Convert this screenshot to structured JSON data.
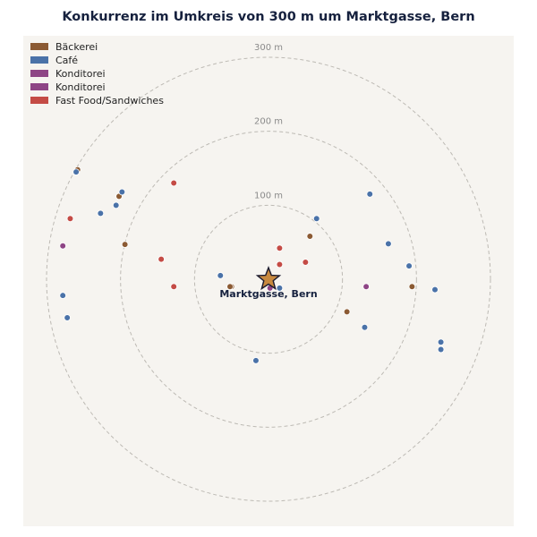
{
  "title": "Konkurrenz im Umkreis von 300 m um Marktgasse, Bern",
  "center_label": "Marktgasse, Bern",
  "rings": [
    {
      "label": "100 m",
      "radius_m": 100
    },
    {
      "label": "200 m",
      "radius_m": 200
    },
    {
      "label": "300 m",
      "radius_m": 300
    }
  ],
  "legend": [
    {
      "label": "Bäckerei",
      "color": "#8b5a33",
      "category": "baeckerei"
    },
    {
      "label": "Café",
      "color": "#4a72a8",
      "category": "cafe"
    },
    {
      "label": "Konditorei",
      "color": "#8e4585",
      "category": "konditorei"
    },
    {
      "label": "Konditorei",
      "color": "#8e4585",
      "category": "konditorei"
    },
    {
      "label": "Fast Food/Sandwiches",
      "color": "#c44b45",
      "category": "fastfood"
    }
  ],
  "chart_data": {
    "type": "scatter",
    "x_unit": "m east of center",
    "y_unit": "m north of center",
    "points": [
      {
        "category": "baeckerei",
        "x": -258,
        "y": 148
      },
      {
        "category": "baeckerei",
        "x": -202,
        "y": 112
      },
      {
        "category": "baeckerei",
        "x": -194,
        "y": 47
      },
      {
        "category": "baeckerei",
        "x": -50,
        "y": -10
      },
      {
        "category": "baeckerei",
        "x": -52,
        "y": -10
      },
      {
        "category": "baeckerei",
        "x": 56,
        "y": 58
      },
      {
        "category": "baeckerei",
        "x": 194,
        "y": -10
      },
      {
        "category": "baeckerei",
        "x": 106,
        "y": -44
      },
      {
        "category": "cafe",
        "x": -260,
        "y": 145
      },
      {
        "category": "cafe",
        "x": -198,
        "y": 118
      },
      {
        "category": "cafe",
        "x": -206,
        "y": 100
      },
      {
        "category": "cafe",
        "x": -227,
        "y": 89
      },
      {
        "category": "cafe",
        "x": -278,
        "y": -22
      },
      {
        "category": "cafe",
        "x": -272,
        "y": -52
      },
      {
        "category": "cafe",
        "x": -65,
        "y": 5
      },
      {
        "category": "cafe",
        "x": 15,
        "y": -12
      },
      {
        "category": "cafe",
        "x": -17,
        "y": -110
      },
      {
        "category": "cafe",
        "x": 65,
        "y": 82
      },
      {
        "category": "cafe",
        "x": 137,
        "y": 115
      },
      {
        "category": "cafe",
        "x": 162,
        "y": 48
      },
      {
        "category": "cafe",
        "x": 190,
        "y": 18
      },
      {
        "category": "cafe",
        "x": 225,
        "y": -14
      },
      {
        "category": "cafe",
        "x": 130,
        "y": -65
      },
      {
        "category": "cafe",
        "x": 233,
        "y": -85
      },
      {
        "category": "cafe",
        "x": 233,
        "y": -95
      },
      {
        "category": "konditorei",
        "x": -278,
        "y": 45
      },
      {
        "category": "konditorei",
        "x": 132,
        "y": -10
      },
      {
        "category": "konditorei",
        "x": 2,
        "y": -12
      },
      {
        "category": "fastfood",
        "x": -268,
        "y": 82
      },
      {
        "category": "fastfood",
        "x": -128,
        "y": 130
      },
      {
        "category": "fastfood",
        "x": -145,
        "y": 27
      },
      {
        "category": "fastfood",
        "x": -128,
        "y": -10
      },
      {
        "category": "fastfood",
        "x": 15,
        "y": 42
      },
      {
        "category": "fastfood",
        "x": 15,
        "y": 20
      },
      {
        "category": "fastfood",
        "x": 50,
        "y": 23
      }
    ]
  }
}
